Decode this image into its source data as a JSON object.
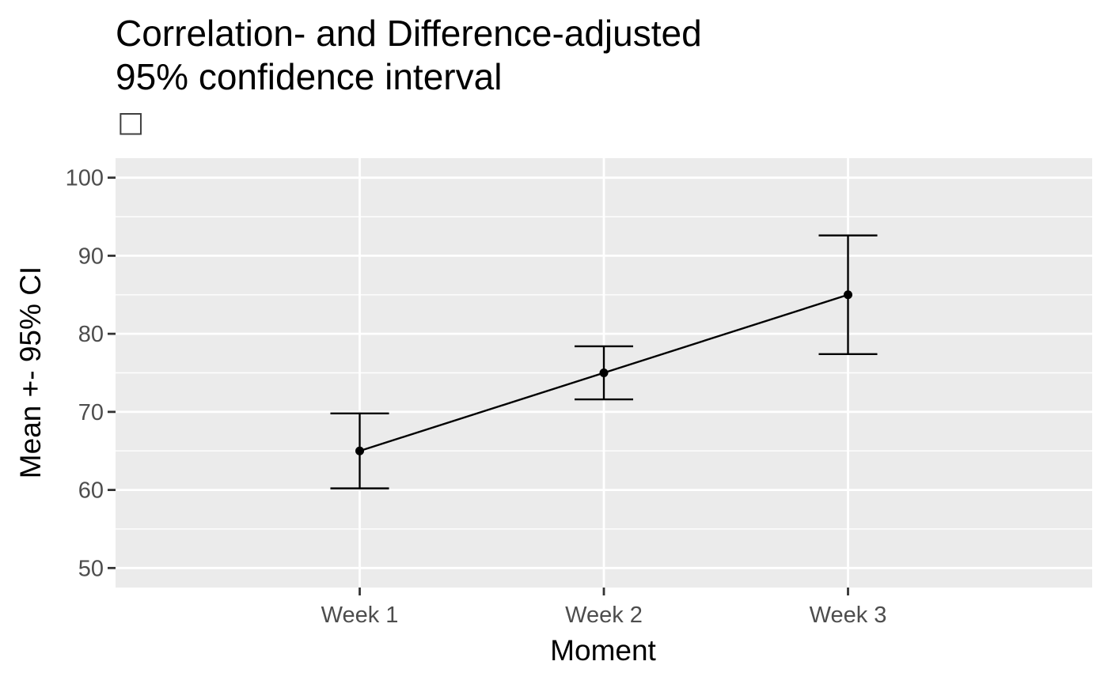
{
  "chart_data": {
    "type": "line",
    "title": "Correlation- and Difference-adjusted",
    "subtitle": "95% confidence interval",
    "subtitle_glyph": "□",
    "xlabel": "Moment",
    "ylabel": "Mean +- 95% CI",
    "categories": [
      "Week 1",
      "Week 2",
      "Week 3"
    ],
    "series": [
      {
        "values": [
          65,
          75,
          85
        ],
        "ci_lower": [
          60.2,
          71.6,
          77.4
        ],
        "ci_upper": [
          69.8,
          78.4,
          92.6
        ]
      }
    ],
    "ylim": [
      47.5,
      102.5
    ],
    "yticks": [
      50,
      60,
      70,
      80,
      90,
      100
    ],
    "grid": true,
    "legend": "none",
    "colors": {
      "panel_background": "#ebebeb",
      "grid_line": "#ffffff",
      "series_line": "#000000",
      "tick_text": "#4d4d4d",
      "axis_tick": "#333333"
    }
  }
}
